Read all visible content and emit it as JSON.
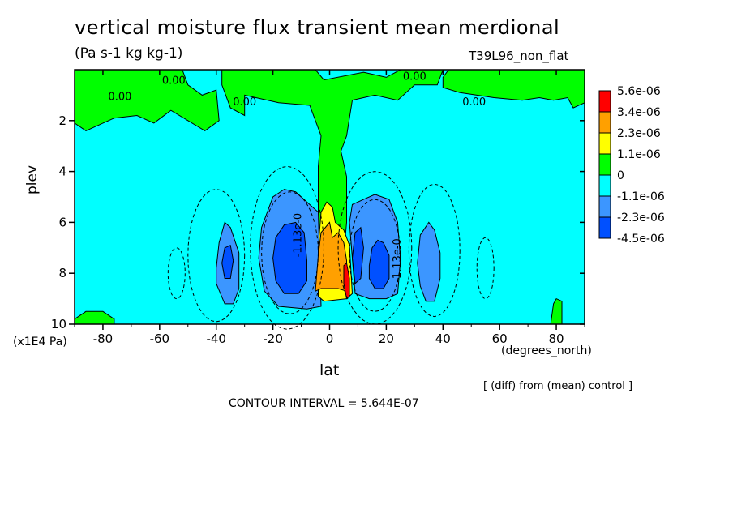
{
  "chart_data": {
    "type": "contour",
    "title": "vertical moisture flux transient mean merdional",
    "units": "(Pa s-1 kg kg-1)",
    "run_label": "T39L96_non_flat",
    "xlabel": "lat",
    "x_units": "(degrees_north)",
    "ylabel": "plev",
    "y_units": "(x1E4 Pa)",
    "xlim": [
      -90,
      90
    ],
    "ylim": [
      10,
      0
    ],
    "x_ticks": [
      -80,
      -60,
      -40,
      -20,
      0,
      20,
      40,
      60,
      80
    ],
    "x_tick_labels": [
      "-80",
      "-60",
      "-40",
      "-20",
      "0",
      "20",
      "40",
      "60",
      "80"
    ],
    "y_ticks": [
      2,
      4,
      6,
      8,
      10
    ],
    "y_tick_labels": [
      "2",
      "4",
      "6",
      "8",
      "10"
    ],
    "legend": {
      "labels": [
        "5.6e-06",
        "3.4e-06",
        "2.3e-06",
        "1.1e-06",
        "0",
        "-1.1e-06",
        "-2.3e-06",
        "-4.5e-06"
      ],
      "colors": [
        "#ff0000",
        "#ffa000",
        "#ffff00",
        "#00ff00",
        "#00ffff",
        "#3c96ff",
        "#0050ff"
      ],
      "placement": "right"
    },
    "contour_labels": [
      "0.00",
      "0.00",
      "0.00",
      "0.00",
      "0.00",
      "-1.13e-0",
      "-1.13e-0"
    ],
    "contour_interval_text": "CONTOUR INTERVAL = 5.644E-07",
    "note": "[ (diff) from (mean) control ]",
    "fill_colors": {
      "background": "#00ffff",
      "positive_small": "#00ff00",
      "negative_mid": "#3c96ff",
      "negative_strong": "#0050ff",
      "positive_mid": "#ffff00",
      "positive_high": "#ffa000",
      "positive_max": "#ff0000"
    },
    "regions": [
      {
        "class": "positive_small",
        "lat_range": [
          -90,
          -40
        ],
        "plev_range": [
          0.0,
          2.4
        ]
      },
      {
        "class": "positive_small",
        "lat_range": [
          -2,
          8
        ],
        "plev_range": [
          0.0,
          8.5
        ]
      },
      {
        "class": "negative_mid",
        "lat_range": [
          -25,
          -3
        ],
        "plev_range": [
          4.6,
          9.4
        ]
      },
      {
        "class": "negative_strong",
        "lat_range": [
          -20,
          -8
        ],
        "plev_range": [
          6.0,
          8.8
        ]
      },
      {
        "class": "negative_mid",
        "lat_range": [
          7,
          25
        ],
        "plev_range": [
          5.0,
          9.0
        ]
      },
      {
        "class": "negative_strong",
        "lat_range": [
          14,
          21
        ],
        "plev_range": [
          6.7,
          8.6
        ]
      },
      {
        "class": "positive_high",
        "lat_range": [
          -5,
          7
        ],
        "plev_range": [
          5.8,
          8.8
        ]
      },
      {
        "class": "positive_max",
        "lat_range": [
          5,
          7
        ],
        "plev_range": [
          7.7,
          8.9
        ]
      }
    ]
  }
}
